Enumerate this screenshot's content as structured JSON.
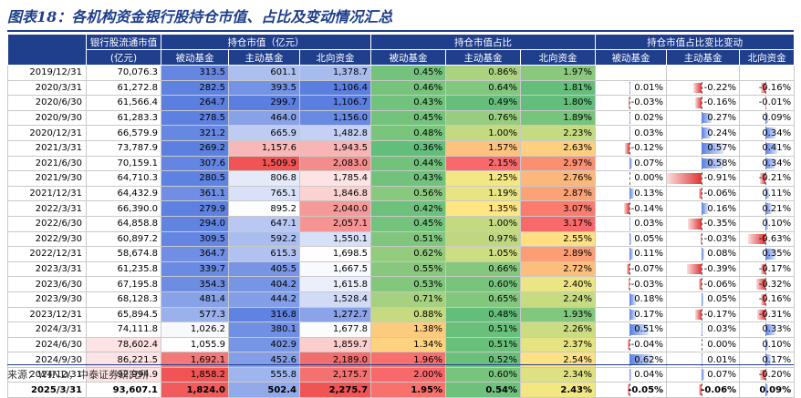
{
  "title": "图表18：各机构资金银行股持仓市值、占比及变动情况汇总",
  "footer": "来源：WIND，中泰证券研究所",
  "headers": {
    "g0": "银行股流通市值",
    "g0_sub": "(亿元)",
    "g1": "持仓市值（亿元）",
    "g2": "持仓市值占比",
    "g3": "持仓市值占比变比变动",
    "sub": [
      "被动基金",
      "主动基金",
      "北向资金",
      "被动基金",
      "主动基金",
      "北向资金",
      "被动基金",
      "主动基金",
      "北向资金"
    ]
  },
  "colors": {
    "header": "#1f3e8c",
    "bar_pos": "#5b7fe0",
    "bar_neg": "#e03535"
  },
  "rows": [
    {
      "date": "2019/12/31",
      "float": "70,076.3",
      "mv": [
        "313.5",
        "601.1",
        "1,378.7"
      ],
      "share": [
        "0.45%",
        "0.86%",
        "1.97%"
      ],
      "chg": [
        "",
        "",
        ""
      ],
      "chgv": [
        null,
        null,
        null
      ]
    },
    {
      "date": "2020/3/31",
      "float": "61,272.8",
      "mv": [
        "282.5",
        "393.5",
        "1,106.4"
      ],
      "share": [
        "0.46%",
        "0.64%",
        "1.81%"
      ],
      "chg": [
        "0.01%",
        "-0.22%",
        "-0.16%"
      ],
      "chgv": [
        0.01,
        -0.22,
        -0.16
      ]
    },
    {
      "date": "2020/6/30",
      "float": "61,566.4",
      "mv": [
        "264.7",
        "299.7",
        "1,106.7"
      ],
      "share": [
        "0.43%",
        "0.49%",
        "1.80%"
      ],
      "chg": [
        "-0.03%",
        "-0.16%",
        "-0.01%"
      ],
      "chgv": [
        -0.03,
        -0.16,
        -0.01
      ]
    },
    {
      "date": "2020/9/30",
      "float": "61,283.3",
      "mv": [
        "278.5",
        "464.0",
        "1,156.0"
      ],
      "share": [
        "0.45%",
        "0.76%",
        "1.89%"
      ],
      "chg": [
        "0.02%",
        "0.27%",
        "0.09%"
      ],
      "chgv": [
        0.02,
        0.27,
        0.09
      ]
    },
    {
      "date": "2020/12/31",
      "float": "66,579.9",
      "mv": [
        "321.2",
        "665.9",
        "1,482.8"
      ],
      "share": [
        "0.48%",
        "1.00%",
        "2.23%"
      ],
      "chg": [
        "0.03%",
        "0.24%",
        "0.34%"
      ],
      "chgv": [
        0.03,
        0.24,
        0.34
      ]
    },
    {
      "date": "2021/3/31",
      "float": "73,787.9",
      "mv": [
        "269.2",
        "1,157.6",
        "1,943.5"
      ],
      "share": [
        "0.36%",
        "1.57%",
        "2.63%"
      ],
      "chg": [
        "-0.12%",
        "0.57%",
        "0.41%"
      ],
      "chgv": [
        -0.12,
        0.57,
        0.41
      ]
    },
    {
      "date": "2021/6/30",
      "float": "70,159.1",
      "mv": [
        "307.6",
        "1,509.9",
        "2,083.0"
      ],
      "share": [
        "0.44%",
        "2.15%",
        "2.97%"
      ],
      "chg": [
        "0.07%",
        "0.58%",
        "0.34%"
      ],
      "chgv": [
        0.07,
        0.58,
        0.34
      ]
    },
    {
      "date": "2021/9/30",
      "float": "64,710.3",
      "mv": [
        "280.5",
        "806.8",
        "1,785.4"
      ],
      "share": [
        "0.43%",
        "1.25%",
        "2.76%"
      ],
      "chg": [
        "0.00%",
        "-0.91%",
        "-0.21%"
      ],
      "chgv": [
        0.0,
        -0.91,
        -0.21
      ]
    },
    {
      "date": "2021/12/31",
      "float": "64,432.9",
      "mv": [
        "361.1",
        "765.1",
        "1,846.8"
      ],
      "share": [
        "0.56%",
        "1.19%",
        "2.87%"
      ],
      "chg": [
        "0.13%",
        "-0.06%",
        "0.11%"
      ],
      "chgv": [
        0.13,
        -0.06,
        0.11
      ]
    },
    {
      "date": "2022/3/31",
      "float": "66,390.0",
      "mv": [
        "279.9",
        "895.2",
        "2,040.0"
      ],
      "share": [
        "0.42%",
        "1.35%",
        "3.07%"
      ],
      "chg": [
        "-0.14%",
        "0.16%",
        "0.21%"
      ],
      "chgv": [
        -0.14,
        0.16,
        0.21
      ]
    },
    {
      "date": "2022/6/30",
      "float": "64,858.8",
      "mv": [
        "294.0",
        "647.1",
        "2,057.1"
      ],
      "share": [
        "0.45%",
        "1.00%",
        "3.17%"
      ],
      "chg": [
        "0.03%",
        "-0.35%",
        "0.10%"
      ],
      "chgv": [
        0.03,
        -0.35,
        0.1
      ]
    },
    {
      "date": "2022/9/30",
      "float": "60,897.2",
      "mv": [
        "309.5",
        "592.2",
        "1,550.1"
      ],
      "share": [
        "0.51%",
        "0.97%",
        "2.55%"
      ],
      "chg": [
        "0.05%",
        "-0.03%",
        "-0.63%"
      ],
      "chgv": [
        0.05,
        -0.03,
        -0.63
      ]
    },
    {
      "date": "2022/12/31",
      "float": "58,674.8",
      "mv": [
        "364.7",
        "615.3",
        "1,698.5"
      ],
      "share": [
        "0.62%",
        "1.05%",
        "2.89%"
      ],
      "chg": [
        "0.11%",
        "0.08%",
        "0.35%"
      ],
      "chgv": [
        0.11,
        0.08,
        0.35
      ]
    },
    {
      "date": "2023/3/31",
      "float": "61,235.8",
      "mv": [
        "339.7",
        "405.5",
        "1,667.5"
      ],
      "share": [
        "0.55%",
        "0.66%",
        "2.72%"
      ],
      "chg": [
        "-0.07%",
        "-0.39%",
        "-0.17%"
      ],
      "chgv": [
        -0.07,
        -0.39,
        -0.17
      ]
    },
    {
      "date": "2023/6/30",
      "float": "67,195.8",
      "mv": [
        "354.3",
        "404.2",
        "1,615.8"
      ],
      "share": [
        "0.53%",
        "0.60%",
        "2.40%"
      ],
      "chg": [
        "-0.03%",
        "-0.06%",
        "-0.32%"
      ],
      "chgv": [
        -0.03,
        -0.06,
        -0.32
      ]
    },
    {
      "date": "2023/9/30",
      "float": "68,128.3",
      "mv": [
        "481.4",
        "444.2",
        "1,528.4"
      ],
      "share": [
        "0.71%",
        "0.65%",
        "2.24%"
      ],
      "chg": [
        "0.18%",
        "0.05%",
        "-0.16%"
      ],
      "chgv": [
        0.18,
        0.05,
        -0.16
      ]
    },
    {
      "date": "2023/12/31",
      "float": "65,894.5",
      "mv": [
        "577.3",
        "316.8",
        "1,272.7"
      ],
      "share": [
        "0.88%",
        "0.48%",
        "1.93%"
      ],
      "chg": [
        "0.17%",
        "-0.17%",
        "-0.31%"
      ],
      "chgv": [
        0.17,
        -0.17,
        -0.31
      ]
    },
    {
      "date": "2024/3/31",
      "float": "74,111.8",
      "mv": [
        "1,026.2",
        "380.1",
        "1,677.8"
      ],
      "share": [
        "1.38%",
        "0.51%",
        "2.26%"
      ],
      "chg": [
        "0.51%",
        "0.03%",
        "0.33%"
      ],
      "chgv": [
        0.51,
        0.03,
        0.33
      ]
    },
    {
      "date": "2024/6/30",
      "float": "78,602.4",
      "mv": [
        "1,055.9",
        "402.9",
        "1,859.7"
      ],
      "share": [
        "1.34%",
        "0.51%",
        "2.37%"
      ],
      "chg": [
        "-0.04%",
        "0.00%",
        "0.10%"
      ],
      "chgv": [
        -0.04,
        0.0,
        0.1
      ]
    },
    {
      "date": "2024/9/30",
      "float": "86,221.5",
      "mv": [
        "1,692.1",
        "452.6",
        "2,189.0"
      ],
      "share": [
        "1.96%",
        "0.52%",
        "2.54%"
      ],
      "chg": [
        "0.62%",
        "0.01%",
        "0.17%"
      ],
      "chgv": [
        0.62,
        0.01,
        0.17
      ]
    },
    {
      "date": "2024/12/31",
      "float": "92,994.9",
      "mv": [
        "1,858.2",
        "555.8",
        "2,175.7"
      ],
      "share": [
        "2.00%",
        "0.60%",
        "2.34%"
      ],
      "chg": [
        "0.04%",
        "0.07%",
        "-0.20%"
      ],
      "chgv": [
        0.04,
        0.07,
        -0.2
      ]
    },
    {
      "date": "2025/3/31",
      "float": "93,607.1",
      "mv": [
        "1,824.0",
        "502.4",
        "2,275.7"
      ],
      "share": [
        "1.95%",
        "0.54%",
        "2.43%"
      ],
      "chg": [
        "-0.05%",
        "-0.06%",
        "0.09%"
      ],
      "chgv": [
        -0.05,
        -0.06,
        0.09
      ]
    }
  ]
}
